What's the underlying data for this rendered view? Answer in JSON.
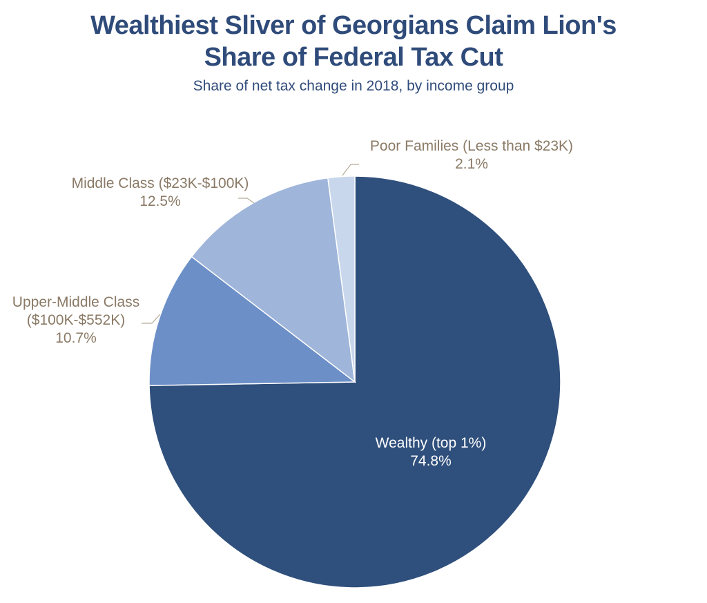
{
  "chart_data": {
    "type": "pie",
    "title_lines": [
      "Wealthiest  Sliver of Georgians Claim Lion's",
      "Share of Federal Tax Cut"
    ],
    "subtitle": "Share of net tax change in 2018, by income group",
    "slices": [
      {
        "label_lines": [
          "Wealthy (top 1%)"
        ],
        "value": 74.8,
        "value_label": "74.8%",
        "color": "#2f4f7c",
        "label_color": "#ffffff"
      },
      {
        "label_lines": [
          "Upper-Middle  Class",
          "($100K-$552K)"
        ],
        "value": 10.7,
        "value_label": "10.7%",
        "color": "#6c8fc7",
        "label_color": "#8a7a66"
      },
      {
        "label_lines": [
          "Middle Class ($23K-$100K)"
        ],
        "value": 12.5,
        "value_label": "12.5%",
        "color": "#9fb5da",
        "label_color": "#8a7a66"
      },
      {
        "label_lines": [
          "Poor Families (Less than $23K)"
        ],
        "value": 2.1,
        "value_label": "2.1%",
        "color": "#c9d7ec",
        "label_color": "#8a7a66"
      }
    ],
    "legend": "none"
  }
}
